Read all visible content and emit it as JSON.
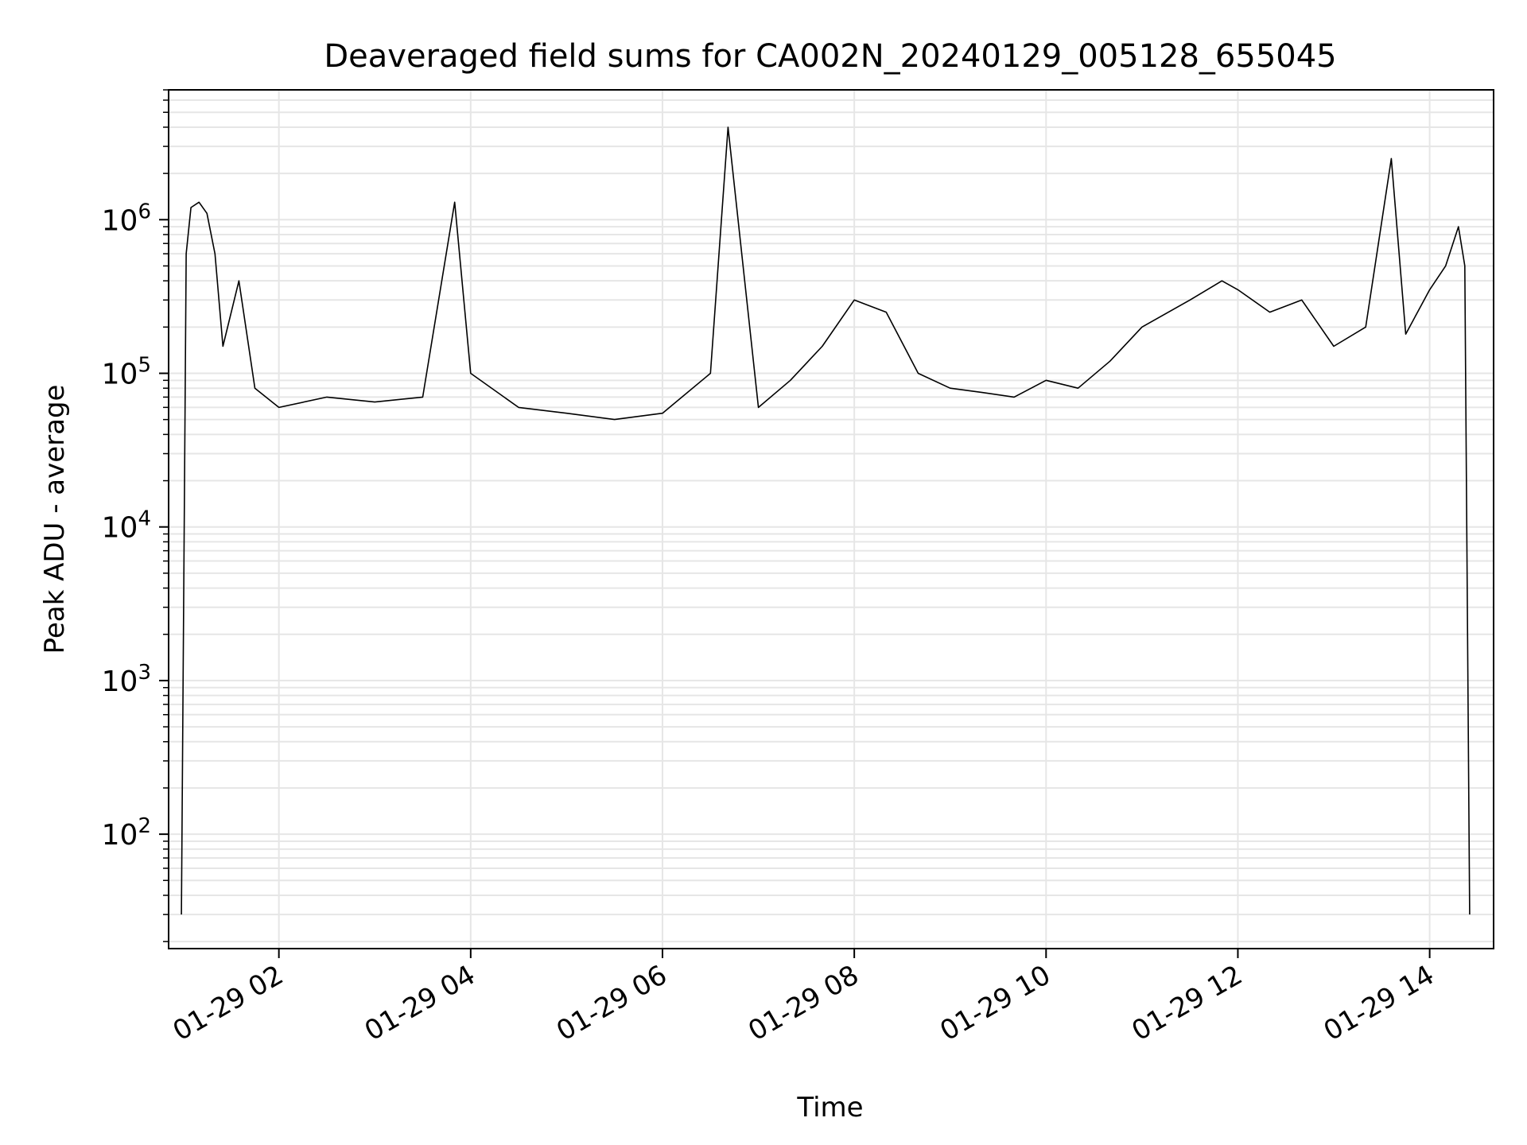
{
  "chart_data": {
    "type": "line",
    "title": "Deaveraged field sums for CA002N_20240129_005128_655045",
    "xlabel": "Time",
    "ylabel": "Peak ADU - average",
    "y_scale": "log",
    "ylim": [
      18,
      7000000
    ],
    "xlim": [
      "2024-01-29 00:51",
      "2024-01-29 14:40"
    ],
    "grid": true,
    "grid_minor": true,
    "legend": "none",
    "line_color": "#000000",
    "x_ticks": [
      {
        "value": "2024-01-29 02:00",
        "label": "01-29 02"
      },
      {
        "value": "2024-01-29 04:00",
        "label": "01-29 04"
      },
      {
        "value": "2024-01-29 06:00",
        "label": "01-29 06"
      },
      {
        "value": "2024-01-29 08:00",
        "label": "01-29 08"
      },
      {
        "value": "2024-01-29 10:00",
        "label": "01-29 10"
      },
      {
        "value": "2024-01-29 12:00",
        "label": "01-29 12"
      },
      {
        "value": "2024-01-29 14:00",
        "label": "01-29 14"
      }
    ],
    "y_ticks": [
      {
        "value": 100,
        "base": "10",
        "exp": "2"
      },
      {
        "value": 1000,
        "base": "10",
        "exp": "3"
      },
      {
        "value": 10000,
        "base": "10",
        "exp": "4"
      },
      {
        "value": 100000,
        "base": "10",
        "exp": "5"
      },
      {
        "value": 1000000,
        "base": "10",
        "exp": "6"
      }
    ],
    "series": [
      {
        "x": [
          "2024-01-29 00:59",
          "2024-01-29 01:02",
          "2024-01-29 01:05",
          "2024-01-29 01:10",
          "2024-01-29 01:15",
          "2024-01-29 01:20",
          "2024-01-29 01:25",
          "2024-01-29 01:35",
          "2024-01-29 01:45",
          "2024-01-29 02:00",
          "2024-01-29 02:30",
          "2024-01-29 03:00",
          "2024-01-29 03:30",
          "2024-01-29 03:50",
          "2024-01-29 04:00",
          "2024-01-29 04:30",
          "2024-01-29 05:00",
          "2024-01-29 05:30",
          "2024-01-29 06:00",
          "2024-01-29 06:30",
          "2024-01-29 06:41",
          "2024-01-29 07:00",
          "2024-01-29 07:20",
          "2024-01-29 07:40",
          "2024-01-29 08:00",
          "2024-01-29 08:20",
          "2024-01-29 08:40",
          "2024-01-29 09:00",
          "2024-01-29 09:20",
          "2024-01-29 09:40",
          "2024-01-29 10:00",
          "2024-01-29 10:20",
          "2024-01-29 10:40",
          "2024-01-29 11:00",
          "2024-01-29 11:30",
          "2024-01-29 11:50",
          "2024-01-29 12:00",
          "2024-01-29 12:20",
          "2024-01-29 12:40",
          "2024-01-29 13:00",
          "2024-01-29 13:20",
          "2024-01-29 13:36",
          "2024-01-29 13:45",
          "2024-01-29 14:00",
          "2024-01-29 14:10",
          "2024-01-29 14:18",
          "2024-01-29 14:22",
          "2024-01-29 14:25"
        ],
        "y": [
          30,
          600000,
          1200000,
          1300000,
          1100000,
          600000,
          150000,
          400000,
          80000,
          60000,
          70000,
          65000,
          70000,
          1300000,
          100000,
          60000,
          55000,
          50000,
          55000,
          100000,
          4000000,
          60000,
          90000,
          150000,
          300000,
          250000,
          100000,
          80000,
          75000,
          70000,
          90000,
          80000,
          120000,
          200000,
          300000,
          400000,
          350000,
          250000,
          300000,
          150000,
          200000,
          2500000,
          180000,
          350000,
          500000,
          900000,
          500000,
          30
        ]
      }
    ]
  }
}
